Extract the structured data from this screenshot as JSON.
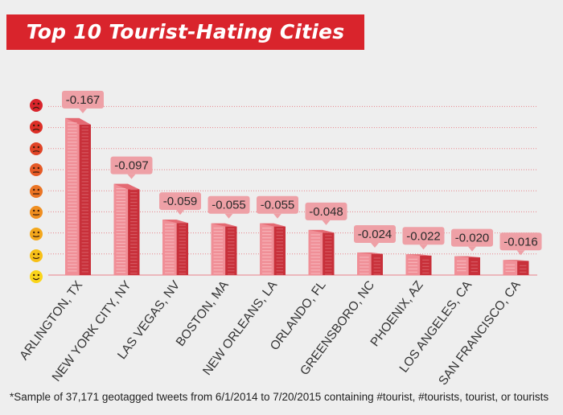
{
  "title": "Top 10 Tourist-Hating Cities",
  "footnote": "*Sample of 37,171 geotagged tweets from 6/1/2014 to 7/20/2015 containing #tourist, #tourists, tourist, or tourists",
  "colors": {
    "accent": "#d9242c",
    "bar_light": "#f08f97",
    "bar_dark": "#c8303a",
    "label_bg": "#eea0a6",
    "grid": "#e8838a",
    "face_scale": [
      "#d9242c",
      "#dd2f27",
      "#e04427",
      "#e55a26",
      "#ea7424",
      "#ef8e20",
      "#f3a71c",
      "#f7c017",
      "#fad51a"
    ]
  },
  "icons": [
    "frown-face-icon",
    "frown-face-icon",
    "frown-face-icon",
    "frown-face-icon",
    "frown-face-icon",
    "frown-face-icon",
    "frown-face-icon",
    "frown-face-icon",
    "frown-face-icon"
  ],
  "chart_data": {
    "type": "bar",
    "categories": [
      "ARLINGTON, TX",
      "NEW YORK CITY, NY",
      "LAS VEGAS, NV",
      "BOSTON, MA",
      "NEW ORLEANS, LA",
      "ORLANDO, FL",
      "GREENSBORO, NC",
      "PHOENIX, AZ",
      "LOS ANGELES, CA",
      "SAN FRANCISCO, CA"
    ],
    "values": [
      -0.167,
      -0.097,
      -0.059,
      -0.055,
      -0.055,
      -0.048,
      -0.024,
      -0.022,
      -0.02,
      -0.016
    ],
    "value_labels": [
      "-0.167",
      "-0.097",
      "-0.059",
      "-0.055",
      "-0.055",
      "-0.048",
      "-0.024",
      "-0.022",
      "-0.020",
      "-0.016"
    ],
    "ylim": [
      0,
      -0.19
    ],
    "grid": true,
    "xlabel": "",
    "ylabel": ""
  }
}
